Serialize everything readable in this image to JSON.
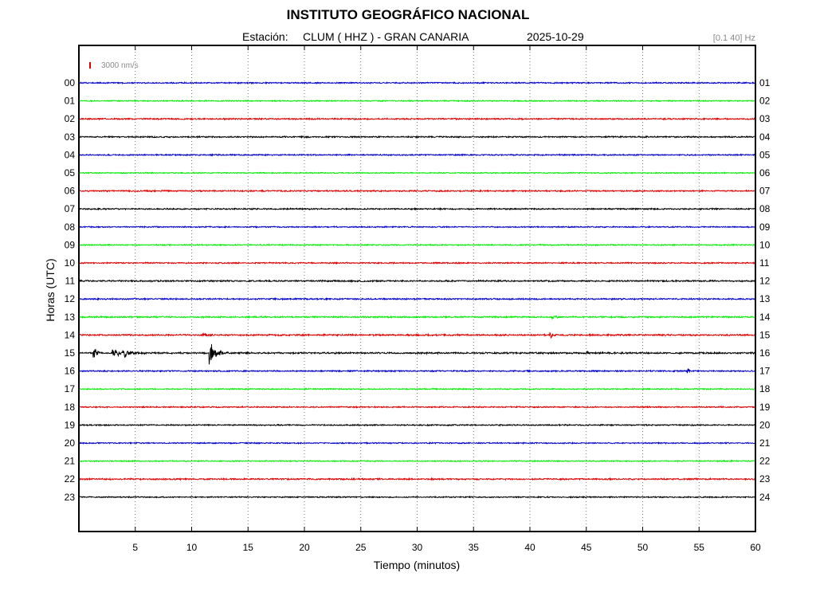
{
  "header": {
    "title": "INSTITUTO GEOGRÁFICO NACIONAL",
    "station_label": "Estación:",
    "station_name": "CLUM ( HHZ ) - GRAN CANARIA",
    "date": "2025-10-29",
    "filter": "[0.1 40] Hz"
  },
  "chart_data": {
    "type": "line",
    "title": "INSTITUTO GEOGRÁFICO NACIONAL",
    "xlabel": "Tiempo (minutos)",
    "ylabel": "Horas (UTC)",
    "xlim": [
      0,
      60
    ],
    "x_ticks": [
      5,
      10,
      15,
      20,
      25,
      30,
      35,
      40,
      45,
      50,
      55,
      60
    ],
    "grid": "vertical-dotted",
    "scale_bar": {
      "label": "3000 nm/s",
      "color": "#e00000"
    },
    "colors_cycle": [
      "#0000cc",
      "#00ee00",
      "#e00000",
      "#000000"
    ],
    "left_labels": [
      "00",
      "01",
      "02",
      "03",
      "04",
      "05",
      "06",
      "07",
      "08",
      "09",
      "10",
      "11",
      "12",
      "13",
      "14",
      "15",
      "16",
      "17",
      "18",
      "19",
      "20",
      "21",
      "22",
      "23"
    ],
    "right_labels": [
      "01",
      "02",
      "03",
      "04",
      "05",
      "06",
      "07",
      "08",
      "09",
      "10",
      "11",
      "12",
      "13",
      "14",
      "15",
      "16",
      "17",
      "18",
      "19",
      "20",
      "21",
      "22",
      "23",
      "24"
    ],
    "base_noise": [
      0.28,
      0.24,
      0.3,
      0.3,
      0.28,
      0.24,
      0.3,
      0.3,
      0.26,
      0.26,
      0.28,
      0.32,
      0.3,
      0.32,
      0.34,
      0.36,
      0.3,
      0.24,
      0.28,
      0.28,
      0.26,
      0.24,
      0.32,
      0.26
    ],
    "events": [
      {
        "hour": 15,
        "minute": 1.3,
        "amplitude": 3.0,
        "duration": 0.6
      },
      {
        "hour": 15,
        "minute": 3.0,
        "amplitude": 1.4,
        "duration": 3.0
      },
      {
        "hour": 15,
        "minute": 4.1,
        "amplitude": 1.6,
        "duration": 0.4
      },
      {
        "hour": 15,
        "minute": 11.6,
        "amplitude": 5.0,
        "duration": 1.4
      },
      {
        "hour": 15,
        "minute": 45.0,
        "amplitude": 1.0,
        "duration": 0.5
      },
      {
        "hour": 16,
        "minute": 54.0,
        "amplitude": 1.2,
        "duration": 0.4
      },
      {
        "hour": 14,
        "minute": 41.8,
        "amplitude": 1.5,
        "duration": 0.5
      },
      {
        "hour": 14,
        "minute": 11.0,
        "amplitude": 1.0,
        "duration": 1.0
      },
      {
        "hour": 13,
        "minute": 42.0,
        "amplitude": 1.0,
        "duration": 0.6
      }
    ]
  }
}
